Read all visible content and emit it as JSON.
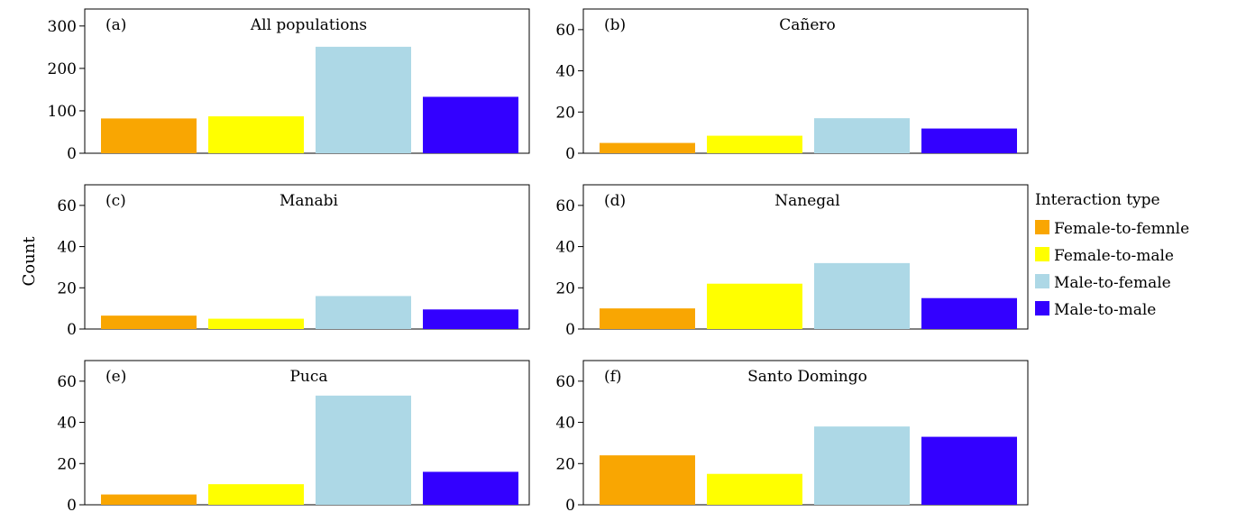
{
  "chart_data": {
    "type": "bar",
    "ylabel": "Count",
    "legend": {
      "title": "Interaction type",
      "placement": "right"
    },
    "categories": [
      "Female-to-femnle",
      "Female-to-male",
      "Male-to-female",
      "Male-to-male"
    ],
    "colors": [
      "#f9a602",
      "#ffff00",
      "#add8e6",
      "#3300ff"
    ],
    "panels": [
      {
        "tag": "(a)",
        "title": "All populations",
        "ylim": [
          0,
          340
        ],
        "yticks": [
          0,
          100,
          200,
          300
        ],
        "values": [
          82,
          87,
          251,
          133
        ]
      },
      {
        "tag": "(b)",
        "title": "Cañero",
        "ylim": [
          0,
          70
        ],
        "yticks": [
          0,
          20,
          40,
          60
        ],
        "values": [
          5,
          8.5,
          17,
          12
        ]
      },
      {
        "tag": "(c)",
        "title": "Manabi",
        "ylim": [
          0,
          70
        ],
        "yticks": [
          0,
          20,
          40,
          60
        ],
        "values": [
          6.5,
          5,
          16,
          9.5
        ]
      },
      {
        "tag": "(d)",
        "title": "Nanegal",
        "ylim": [
          0,
          70
        ],
        "yticks": [
          0,
          20,
          40,
          60
        ],
        "values": [
          10,
          22,
          32,
          15
        ]
      },
      {
        "tag": "(e)",
        "title": "Puca",
        "ylim": [
          0,
          70
        ],
        "yticks": [
          0,
          20,
          40,
          60
        ],
        "values": [
          5,
          10,
          53,
          16
        ]
      },
      {
        "tag": "(f)",
        "title": "Santo Domingo",
        "ylim": [
          0,
          70
        ],
        "yticks": [
          0,
          20,
          40,
          60
        ],
        "values": [
          24,
          15,
          38,
          33
        ]
      }
    ]
  }
}
